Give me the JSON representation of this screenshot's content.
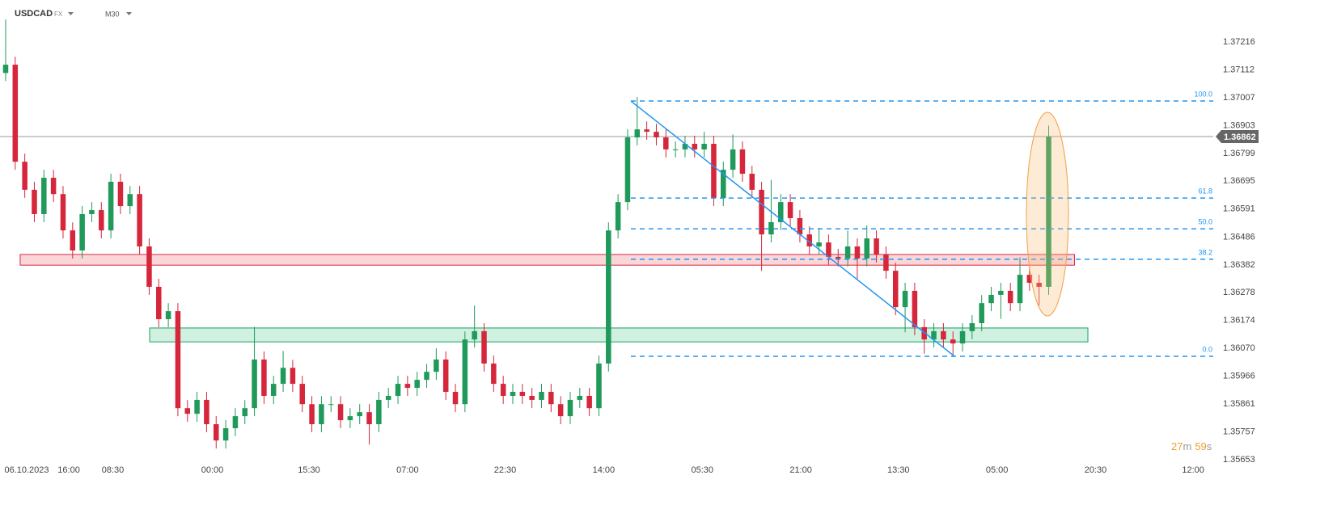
{
  "header": {
    "symbol": "USDCAD",
    "market": "FX",
    "interval": "M30"
  },
  "countdown": {
    "minutes": "27",
    "minutes_unit": "m",
    "seconds": "59",
    "seconds_unit": "s"
  },
  "chart_data": {
    "type": "candlestick",
    "xlim": [
      -0.59,
      126.2
    ],
    "ylim": [
      1.35635,
      1.37373
    ],
    "xticks": [
      {
        "value": 2.2,
        "label": "06.10.2023"
      },
      {
        "value": 6.6,
        "label": "16:00"
      },
      {
        "value": 11.2,
        "label": "08:30"
      },
      {
        "value": 21.6,
        "label": "00:00"
      },
      {
        "value": 31.7,
        "label": "15:30"
      },
      {
        "value": 42.0,
        "label": "07:00"
      },
      {
        "value": 52.2,
        "label": "22:30"
      },
      {
        "value": 62.5,
        "label": "14:00"
      },
      {
        "value": 72.8,
        "label": "05:30"
      },
      {
        "value": 83.1,
        "label": "21:00"
      },
      {
        "value": 93.3,
        "label": "13:30"
      },
      {
        "value": 103.6,
        "label": "05:00"
      },
      {
        "value": 113.9,
        "label": "20:30"
      },
      {
        "value": 124.1,
        "label": "12:00"
      }
    ],
    "yticks": [
      1.37216,
      1.37112,
      1.37007,
      1.36903,
      1.36799,
      1.36695,
      1.36591,
      1.36486,
      1.36382,
      1.36278,
      1.36174,
      {
        "value": 1.3607,
        "label": "1.36070"
      },
      1.35966,
      1.35861,
      1.35757,
      1.35653
    ],
    "up_color": "#1f9a5a",
    "down_color": "#d6263b",
    "open": [
      1.371,
      1.37131,
      1.36768,
      1.36663,
      1.36572,
      1.36708,
      1.36647,
      1.36511,
      1.36436,
      1.36572,
      1.36587,
      1.36511,
      1.36693,
      1.36602,
      1.36647,
      1.36451,
      1.363,
      1.36179,
      1.36209,
      1.35846,
      1.35825,
      1.35877,
      1.35786,
      1.35725,
      1.35771,
      1.35816,
      1.35846,
      1.36028,
      1.35892,
      1.35937,
      1.35997,
      1.35937,
      1.35861,
      1.35786,
      1.35861,
      1.35861,
      1.35801,
      1.35816,
      1.35831,
      1.35786,
      1.35877,
      1.35892,
      1.35937,
      1.35922,
      1.35952,
      1.35982,
      1.36028,
      1.35907,
      1.35861,
      1.36103,
      1.36134,
      1.36013,
      1.35937,
      1.35892,
      1.35907,
      1.35892,
      1.35877,
      1.35907,
      1.35861,
      1.35816,
      1.35877,
      1.35892,
      1.35846,
      1.36013,
      1.36511,
      1.36617,
      1.36859,
      1.36889,
      1.3688,
      1.36859,
      1.36814,
      1.36814,
      1.36835,
      1.36814,
      1.36835,
      1.36632,
      1.36738,
      1.36814,
      1.36723,
      1.36663,
      1.36496,
      1.36542,
      1.36617,
      1.36557,
      1.36496,
      1.36451,
      1.36466,
      1.36412,
      1.36406,
      1.36451,
      1.36406,
      1.36481,
      1.36421,
      1.3636,
      1.36224,
      1.36285,
      1.36149,
      1.36103,
      1.36134,
      1.36103,
      1.36088,
      1.36134,
      1.36164,
      1.36239,
      1.3627,
      1.36285,
      1.36239,
      1.36345,
      1.36315,
      1.363
    ],
    "high": [
      1.373,
      1.37161,
      1.36798,
      1.36693,
      1.36738,
      1.36738,
      1.36677,
      1.36541,
      1.36602,
      1.36617,
      1.36617,
      1.36723,
      1.36723,
      1.36677,
      1.36677,
      1.36481,
      1.3633,
      1.36239,
      1.36239,
      1.35876,
      1.35907,
      1.35907,
      1.35816,
      1.35801,
      1.35846,
      1.35876,
      1.3615,
      1.36058,
      1.35967,
      1.3606,
      1.36027,
      1.35967,
      1.35891,
      1.35891,
      1.35891,
      1.35891,
      1.35846,
      1.35861,
      1.35861,
      1.35907,
      1.35922,
      1.35967,
      1.35967,
      1.35982,
      1.36012,
      1.3607,
      1.36058,
      1.35937,
      1.36133,
      1.3623,
      1.36164,
      1.36043,
      1.35967,
      1.35937,
      1.35937,
      1.35922,
      1.35937,
      1.35937,
      1.35891,
      1.35907,
      1.35922,
      1.35922,
      1.36043,
      1.36541,
      1.36647,
      1.36889,
      1.3701,
      1.36919,
      1.3691,
      1.36889,
      1.36844,
      1.36865,
      1.36865,
      1.3688,
      1.36865,
      1.36768,
      1.3687,
      1.36844,
      1.36753,
      1.36693,
      1.367,
      1.36647,
      1.36647,
      1.36587,
      1.36526,
      1.3652,
      1.36496,
      1.36442,
      1.3651,
      1.36481,
      1.3653,
      1.36511,
      1.36451,
      1.3639,
      1.36315,
      1.36315,
      1.36179,
      1.36164,
      1.36164,
      1.36133,
      1.36164,
      1.36194,
      1.36269,
      1.363,
      1.36315,
      1.36315,
      1.3641,
      1.36375,
      1.36345,
      1.36903
    ],
    "low": [
      1.3707,
      1.36738,
      1.36633,
      1.36542,
      1.36542,
      1.36617,
      1.36481,
      1.36406,
      1.36406,
      1.36542,
      1.36481,
      1.36481,
      1.36572,
      1.36572,
      1.36421,
      1.3627,
      1.36149,
      1.36149,
      1.35816,
      1.35795,
      1.35795,
      1.35756,
      1.35695,
      1.35695,
      1.35741,
      1.35786,
      1.35816,
      1.35862,
      1.35862,
      1.35907,
      1.35907,
      1.35831,
      1.35756,
      1.35756,
      1.35831,
      1.35771,
      1.35771,
      1.35786,
      1.3571,
      1.35756,
      1.35847,
      1.35862,
      1.35892,
      1.35892,
      1.35922,
      1.35952,
      1.35877,
      1.35831,
      1.35831,
      1.36073,
      1.35983,
      1.35907,
      1.35862,
      1.35862,
      1.35862,
      1.35847,
      1.35847,
      1.35831,
      1.35786,
      1.35786,
      1.35847,
      1.35816,
      1.35816,
      1.35983,
      1.36481,
      1.36587,
      1.36829,
      1.3685,
      1.36829,
      1.36784,
      1.36784,
      1.36784,
      1.36784,
      1.36784,
      1.36602,
      1.36602,
      1.36708,
      1.36693,
      1.36633,
      1.3636,
      1.36466,
      1.36512,
      1.36527,
      1.36466,
      1.36421,
      1.36421,
      1.36382,
      1.36376,
      1.36376,
      1.3633,
      1.36376,
      1.36391,
      1.3633,
      1.36194,
      1.3613,
      1.36119,
      1.3605,
      1.36073,
      1.36073,
      1.3604,
      1.36058,
      1.36104,
      1.36134,
      1.36209,
      1.3618,
      1.36209,
      1.36209,
      1.36285,
      1.3623,
      1.3627
    ],
    "close": [
      1.37131,
      1.36768,
      1.36663,
      1.36572,
      1.36708,
      1.36647,
      1.36511,
      1.36436,
      1.36572,
      1.36587,
      1.36511,
      1.36693,
      1.36602,
      1.36647,
      1.36451,
      1.363,
      1.36179,
      1.36209,
      1.35846,
      1.35825,
      1.35877,
      1.35786,
      1.35725,
      1.35771,
      1.35816,
      1.35846,
      1.36028,
      1.35892,
      1.35937,
      1.35997,
      1.35937,
      1.35861,
      1.35786,
      1.35861,
      1.35861,
      1.35801,
      1.35816,
      1.35831,
      1.35786,
      1.35877,
      1.35892,
      1.35937,
      1.35922,
      1.35952,
      1.35982,
      1.36028,
      1.35907,
      1.35861,
      1.36103,
      1.36134,
      1.36013,
      1.35937,
      1.35892,
      1.35907,
      1.35892,
      1.35877,
      1.35907,
      1.35861,
      1.35816,
      1.35877,
      1.35892,
      1.35846,
      1.36013,
      1.36511,
      1.36617,
      1.36859,
      1.36889,
      1.3688,
      1.36859,
      1.36814,
      1.36814,
      1.36835,
      1.36814,
      1.36835,
      1.36632,
      1.36738,
      1.36814,
      1.36723,
      1.36663,
      1.36496,
      1.36542,
      1.36617,
      1.36557,
      1.36496,
      1.36451,
      1.36466,
      1.36412,
      1.36406,
      1.36451,
      1.36406,
      1.36481,
      1.36421,
      1.3636,
      1.36224,
      1.36285,
      1.36149,
      1.36103,
      1.36134,
      1.36103,
      1.36088,
      1.36134,
      1.36164,
      1.36239,
      1.3627,
      1.36285,
      1.36239,
      1.36345,
      1.36315,
      1.363,
      1.36862
    ],
    "last_price": 1.36862,
    "zones": [
      {
        "from": 1.52,
        "to": 111.7,
        "top": 1.36421,
        "bottom": 1.36381,
        "fill": "rgba(240,120,130,0.3)",
        "stroke": "#d6263b"
      },
      {
        "from": 15.05,
        "to": 113.1,
        "top": 1.36146,
        "bottom": 1.36094,
        "fill": "rgba(120,215,165,0.35)",
        "stroke": "#1a9f6a"
      }
    ],
    "trend_line": {
      "x": [
        65.34,
        99.16
      ],
      "y": [
        1.36995,
        1.3604
      ],
      "color": "#2196f3"
    },
    "fib": {
      "start": 65.34,
      "color": "#2196f3",
      "levels": [
        {
          "label": "100.0",
          "price": 1.36995
        },
        {
          "label": "61.8",
          "price": 1.36632
        },
        {
          "label": "50.0",
          "price": 1.36517
        },
        {
          "label": "38.2",
          "price": 1.36403
        },
        {
          "label": "0.0",
          "price": 1.3604
        }
      ]
    }
  }
}
